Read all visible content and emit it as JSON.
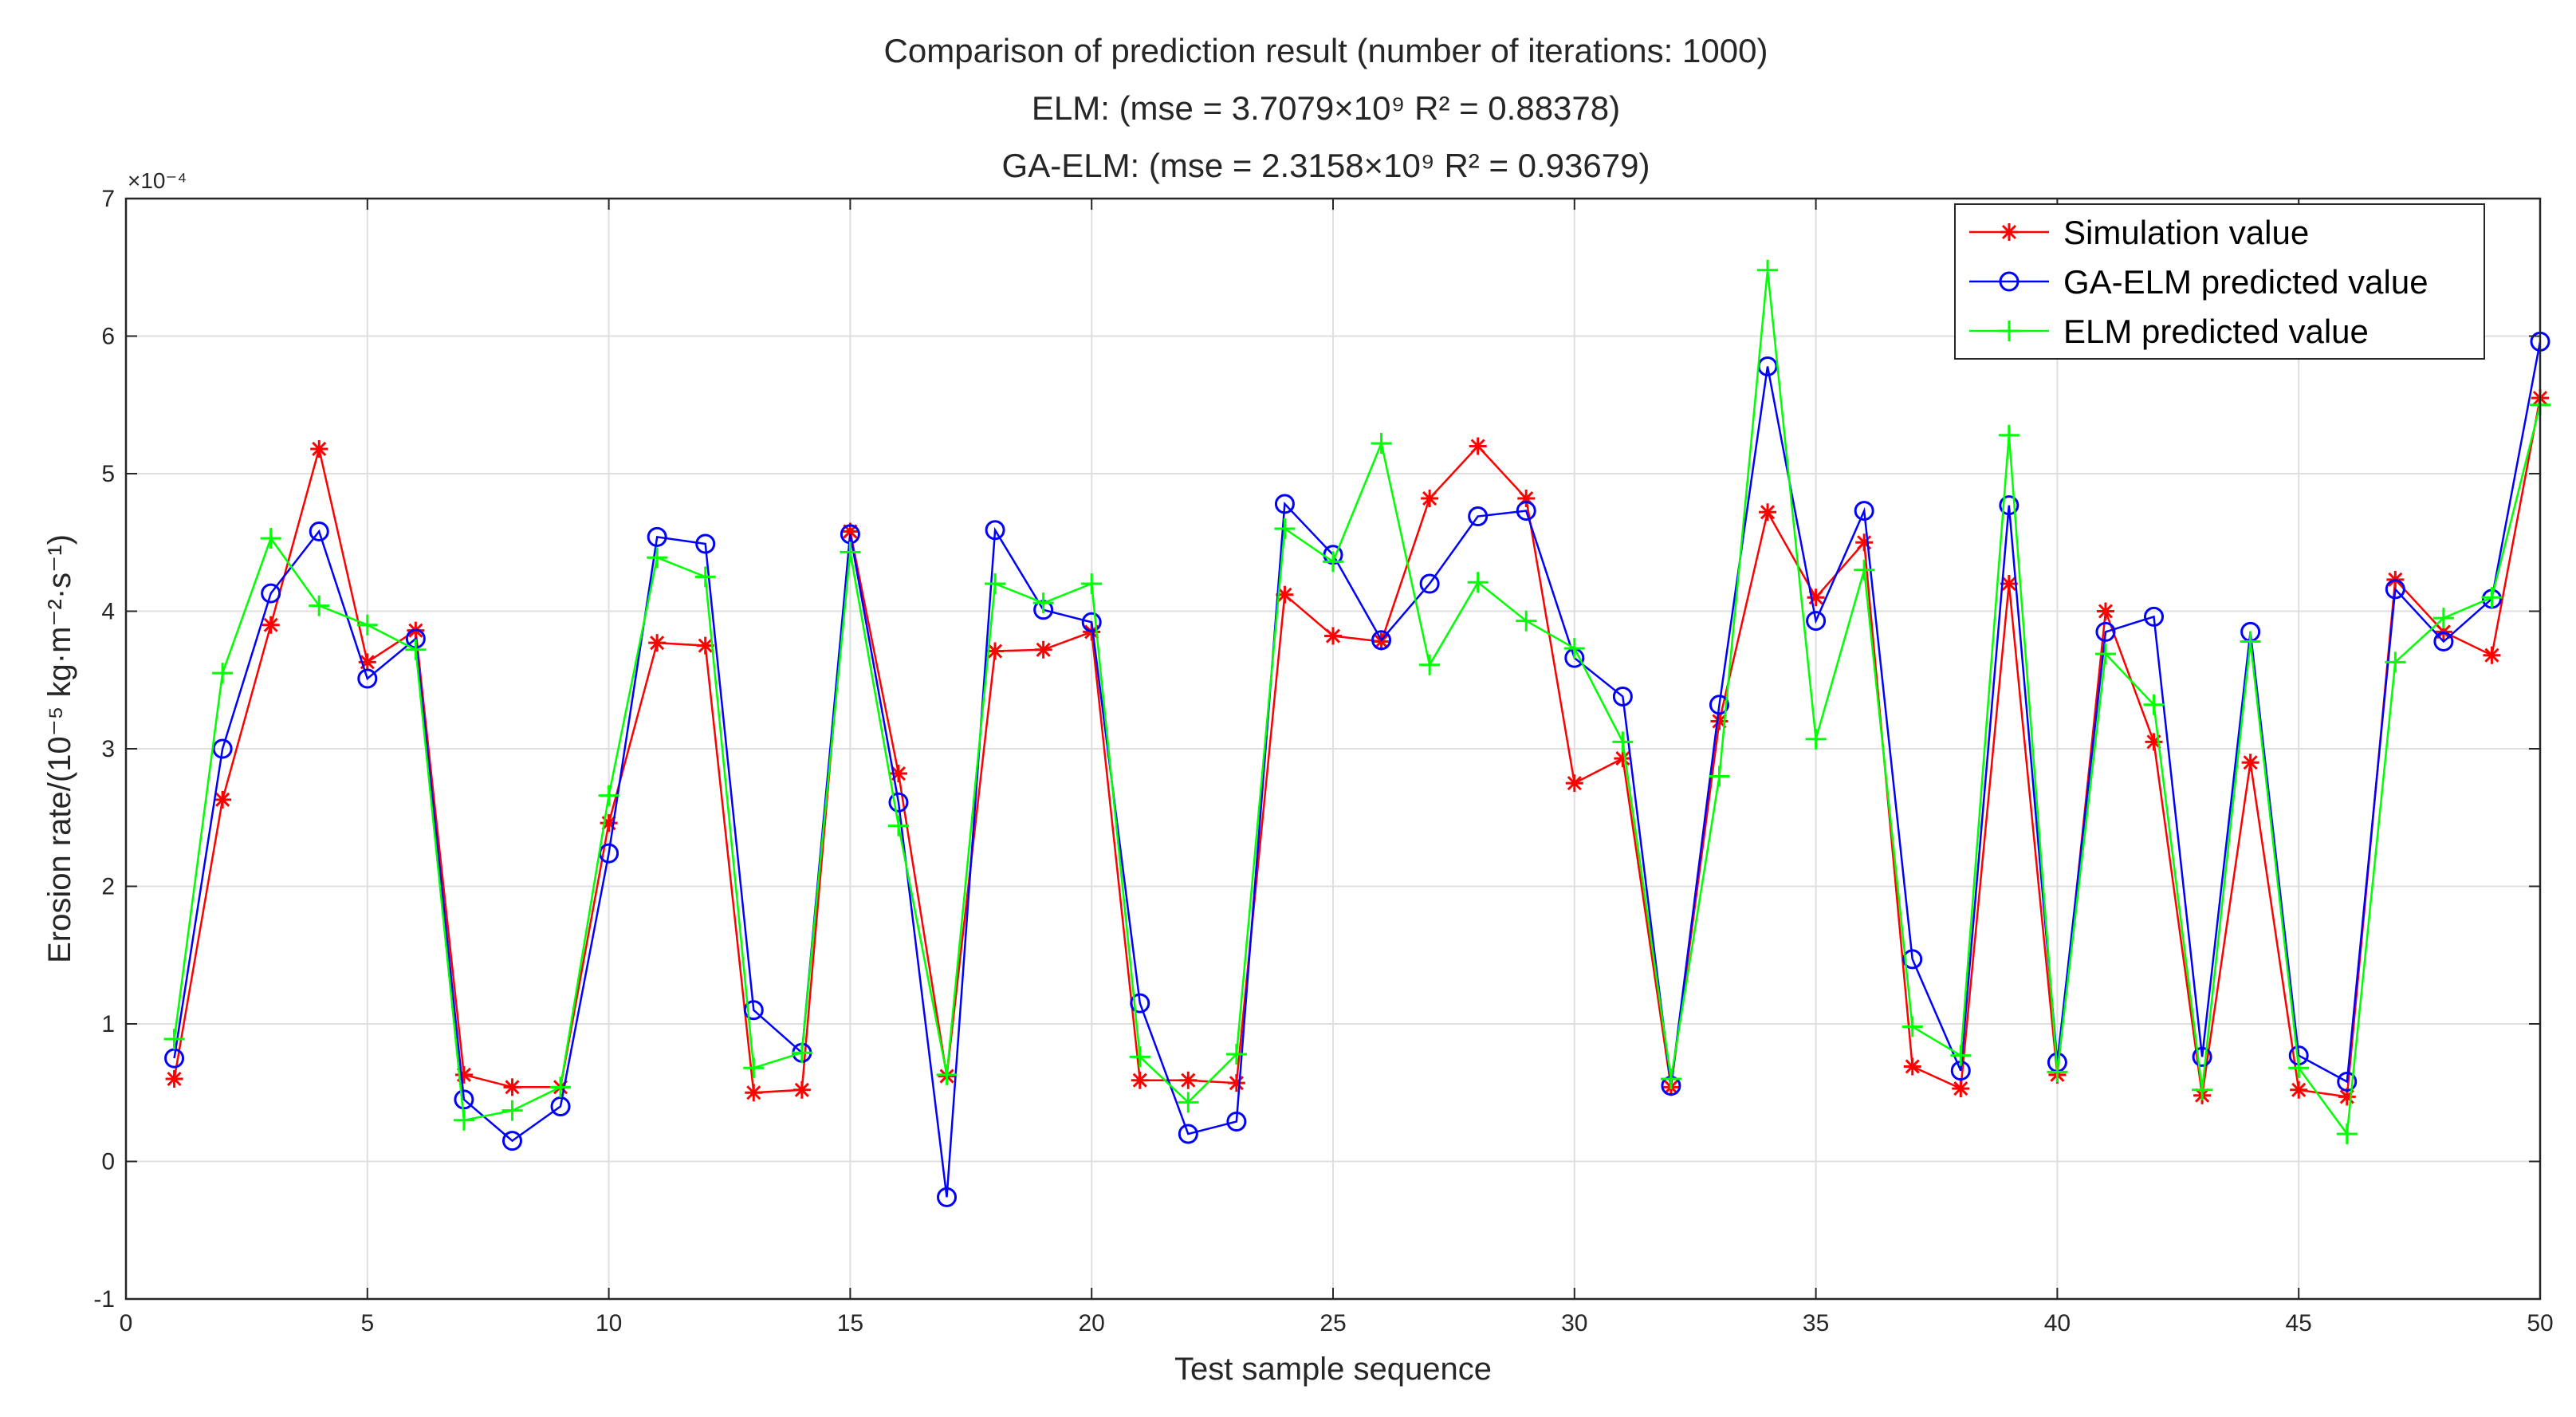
{
  "chart_data": {
    "type": "line",
    "title_lines": [
      "Comparison of prediction result (number of iterations: 1000)",
      "ELM: (mse = 3.7079×10⁹ R² = 0.88378)",
      "GA-ELM: (mse = 2.3158×10⁹ R² = 0.93679)"
    ],
    "xlabel": "Test sample sequence",
    "ylabel": "Erosion rate/(10⁻⁵ kg·m⁻²·s⁻¹)",
    "y_exponent_label": "×10⁻⁴",
    "xlim": [
      0,
      50
    ],
    "ylim": [
      -1,
      7
    ],
    "x_ticks": [
      0,
      5,
      10,
      15,
      20,
      25,
      30,
      35,
      40,
      45,
      50
    ],
    "y_ticks": [
      -1,
      0,
      1,
      2,
      3,
      4,
      5,
      6,
      7
    ],
    "grid": true,
    "legend_position": "top-right",
    "x": [
      1,
      2,
      3,
      4,
      5,
      6,
      7,
      8,
      9,
      10,
      11,
      12,
      13,
      14,
      15,
      16,
      17,
      18,
      19,
      20,
      21,
      22,
      23,
      24,
      25,
      26,
      27,
      28,
      29,
      30,
      31,
      32,
      33,
      34,
      35,
      36,
      37,
      38,
      39,
      40,
      41,
      42,
      43,
      44,
      45,
      46,
      47,
      48,
      49,
      50
    ],
    "series": [
      {
        "name": "Simulation value",
        "color": "#ff0000",
        "marker": "star",
        "values": [
          0.6,
          2.63,
          3.9,
          5.18,
          3.63,
          3.86,
          0.63,
          0.54,
          0.54,
          2.46,
          3.77,
          3.75,
          0.5,
          0.52,
          4.58,
          2.82,
          0.62,
          3.71,
          3.72,
          3.85,
          0.59,
          0.59,
          0.57,
          4.12,
          3.82,
          3.78,
          4.82,
          5.2,
          4.82,
          2.75,
          2.93,
          0.54,
          3.2,
          4.72,
          4.1,
          4.5,
          0.69,
          0.53,
          4.2,
          0.63,
          4.0,
          3.05,
          0.48,
          2.9,
          0.52,
          0.47,
          4.23,
          3.85,
          3.68,
          5.55
        ]
      },
      {
        "name": "GA-ELM predicted value",
        "color": "#0000ff",
        "marker": "circle",
        "values": [
          0.75,
          3.0,
          4.13,
          4.58,
          3.51,
          3.8,
          0.45,
          0.15,
          0.4,
          2.24,
          4.54,
          4.49,
          1.1,
          0.79,
          4.56,
          2.61,
          -0.26,
          4.59,
          4.01,
          3.92,
          1.15,
          0.2,
          0.29,
          4.78,
          4.41,
          3.79,
          4.2,
          4.69,
          4.73,
          3.66,
          3.38,
          0.55,
          3.32,
          5.78,
          3.93,
          4.73,
          1.47,
          0.66,
          4.77,
          0.72,
          3.85,
          3.96,
          0.76,
          3.85,
          0.77,
          0.58,
          4.16,
          3.78,
          4.09,
          5.96
        ]
      },
      {
        "name": "ELM predicted value",
        "color": "#00ff00",
        "marker": "plus",
        "values": [
          0.89,
          3.55,
          4.53,
          4.04,
          3.9,
          3.72,
          0.3,
          0.37,
          0.54,
          2.66,
          4.39,
          4.25,
          0.68,
          0.79,
          4.43,
          2.44,
          0.63,
          4.2,
          4.06,
          4.2,
          0.76,
          0.43,
          0.78,
          4.6,
          4.36,
          5.22,
          3.61,
          4.21,
          3.93,
          3.73,
          3.05,
          0.6,
          2.8,
          6.48,
          3.07,
          4.3,
          0.98,
          0.77,
          5.28,
          0.65,
          3.69,
          3.32,
          0.52,
          3.78,
          0.68,
          0.2,
          3.63,
          3.95,
          4.1,
          5.5
        ]
      }
    ]
  }
}
